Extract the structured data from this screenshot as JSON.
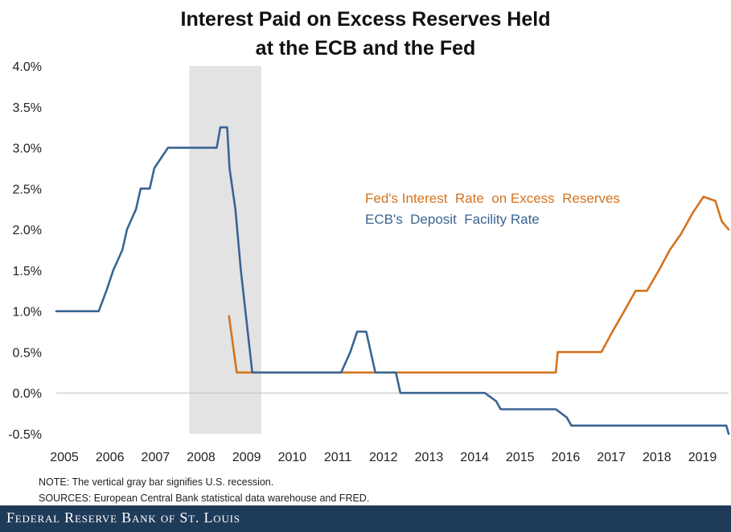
{
  "chart_data": {
    "type": "line",
    "title_line1": "Interest Paid on Excess Reserves Held",
    "title_line2": "at the ECB and the Fed",
    "xlabel": "",
    "ylabel": "",
    "x_ticks": [
      "2005",
      "2006",
      "2007",
      "2008",
      "2009",
      "2010",
      "2011",
      "2012",
      "2013",
      "2014",
      "2015",
      "2016",
      "2017",
      "2018",
      "2019"
    ],
    "y_ticks": [
      "4.0%",
      "3.5%",
      "3.0%",
      "2.5%",
      "2.0%",
      "1.5%",
      "1.0%",
      "0.5%",
      "0.0%",
      "-0.5%"
    ],
    "xlim": [
      2005,
      2019.75
    ],
    "ylim": [
      -0.5,
      4.0
    ],
    "grid": false,
    "legend_position": "right-middle",
    "recession": {
      "start": 2007.92,
      "end": 2009.5,
      "color": "#e3e3e3"
    },
    "series": [
      {
        "name": "Fed's Interest  Rate  on Excess  Reserves",
        "color": "#d4731d",
        "points": [
          [
            2008.79,
            0.94
          ],
          [
            2008.96,
            0.25
          ],
          [
            2015.96,
            0.25
          ],
          [
            2016.0,
            0.5
          ],
          [
            2016.96,
            0.5
          ],
          [
            2017.2,
            0.75
          ],
          [
            2017.46,
            1.0
          ],
          [
            2017.71,
            1.25
          ],
          [
            2017.96,
            1.25
          ],
          [
            2018.22,
            1.5
          ],
          [
            2018.46,
            1.75
          ],
          [
            2018.71,
            1.95
          ],
          [
            2018.96,
            2.2
          ],
          [
            2019.2,
            2.4
          ],
          [
            2019.46,
            2.35
          ],
          [
            2019.6,
            2.1
          ],
          [
            2019.75,
            2.0
          ]
        ]
      },
      {
        "name": "ECB's  Deposit  Facility Rate",
        "color": "#3a6493",
        "points": [
          [
            2005.0,
            1.0
          ],
          [
            2005.93,
            1.0
          ],
          [
            2006.1,
            1.25
          ],
          [
            2006.25,
            1.5
          ],
          [
            2006.45,
            1.75
          ],
          [
            2006.55,
            2.0
          ],
          [
            2006.75,
            2.25
          ],
          [
            2006.85,
            2.5
          ],
          [
            2007.05,
            2.5
          ],
          [
            2007.15,
            2.75
          ],
          [
            2007.45,
            3.0
          ],
          [
            2008.52,
            3.0
          ],
          [
            2008.6,
            3.25
          ],
          [
            2008.75,
            3.25
          ],
          [
            2008.8,
            2.75
          ],
          [
            2008.93,
            2.25
          ],
          [
            2009.05,
            1.5
          ],
          [
            2009.15,
            1.0
          ],
          [
            2009.3,
            0.25
          ],
          [
            2011.25,
            0.25
          ],
          [
            2011.45,
            0.5
          ],
          [
            2011.6,
            0.75
          ],
          [
            2011.8,
            0.75
          ],
          [
            2012.0,
            0.25
          ],
          [
            2012.45,
            0.25
          ],
          [
            2012.55,
            0.0
          ],
          [
            2014.4,
            0.0
          ],
          [
            2014.65,
            -0.1
          ],
          [
            2014.75,
            -0.2
          ],
          [
            2015.96,
            -0.2
          ],
          [
            2016.2,
            -0.3
          ],
          [
            2016.3,
            -0.4
          ],
          [
            2019.7,
            -0.4
          ],
          [
            2019.75,
            -0.5
          ]
        ]
      }
    ],
    "notes": [
      "NOTE: The vertical gray bar signifies U.S. recession.",
      "SOURCES: European  Central Bank statistical data warehouse and FRED."
    ],
    "footer": "Federal Reserve Bank of St. Louis"
  }
}
